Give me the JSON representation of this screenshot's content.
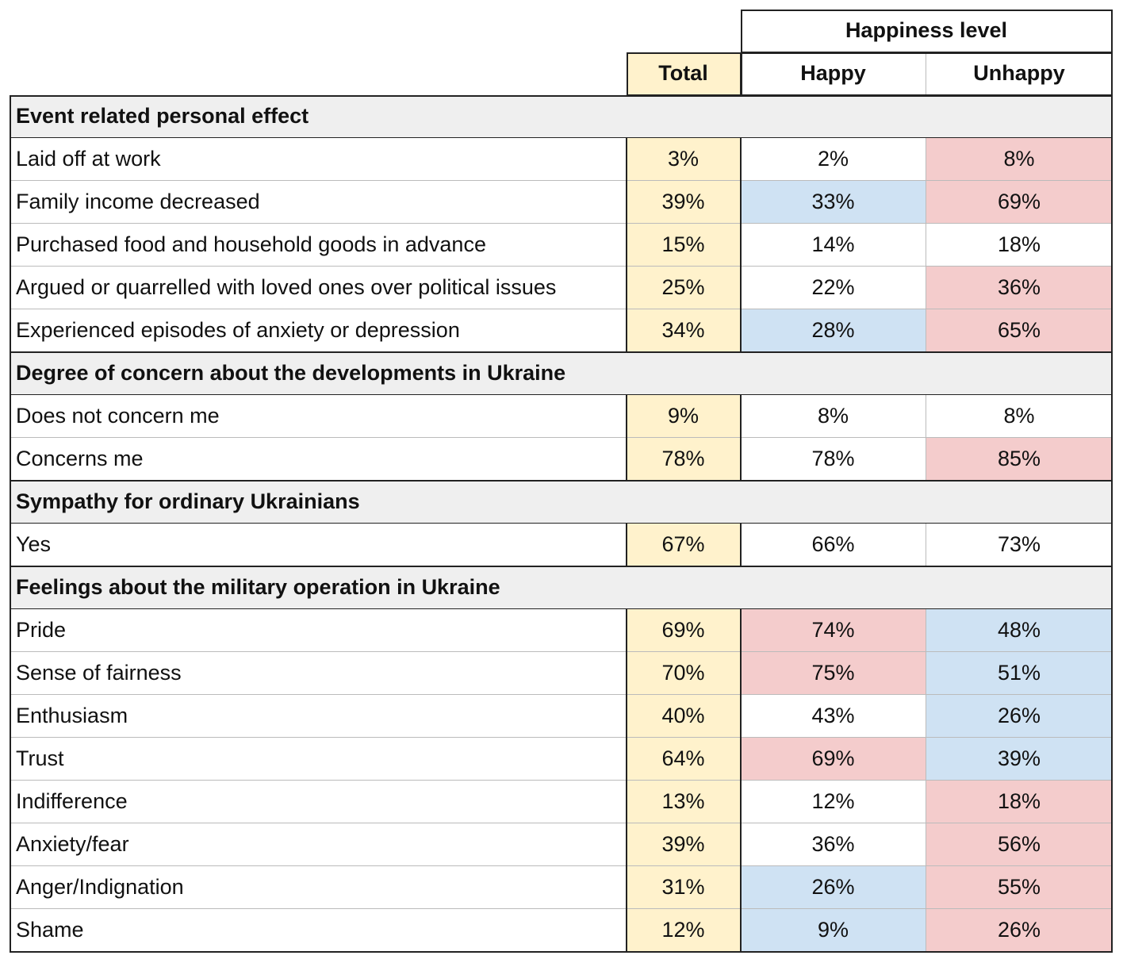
{
  "header": {
    "group": "Happiness level",
    "columns": [
      "Total",
      "Happy",
      "Unhappy"
    ]
  },
  "sections": [
    {
      "title": "Event related personal effect",
      "rows": [
        {
          "label": "Laid off at work",
          "values": [
            "3%",
            "2%",
            "8%"
          ],
          "fills": [
            "#fff2cc",
            null,
            "#f4cccc"
          ]
        },
        {
          "label": "Family income decreased",
          "values": [
            "39%",
            "33%",
            "69%"
          ],
          "fills": [
            "#fff2cc",
            "#cfe2f3",
            "#f4cccc"
          ]
        },
        {
          "label": "Purchased food and household goods in advance",
          "values": [
            "15%",
            "14%",
            "18%"
          ],
          "fills": [
            "#fff2cc",
            null,
            null
          ]
        },
        {
          "label": "Argued or quarrelled with loved ones over political issues",
          "values": [
            "25%",
            "22%",
            "36%"
          ],
          "fills": [
            "#fff2cc",
            null,
            "#f4cccc"
          ]
        },
        {
          "label": "Experienced episodes of anxiety or depression",
          "values": [
            "34%",
            "28%",
            "65%"
          ],
          "fills": [
            "#fff2cc",
            "#cfe2f3",
            "#f4cccc"
          ]
        }
      ]
    },
    {
      "title": "Degree of concern about the developments in Ukraine",
      "rows": [
        {
          "label": "Does not concern me",
          "values": [
            "9%",
            "8%",
            "8%"
          ],
          "fills": [
            "#fff2cc",
            null,
            null
          ]
        },
        {
          "label": "Concerns me",
          "values": [
            "78%",
            "78%",
            "85%"
          ],
          "fills": [
            "#fff2cc",
            null,
            "#f4cccc"
          ]
        }
      ]
    },
    {
      "title": "Sympathy for ordinary Ukrainians",
      "rows": [
        {
          "label": "Yes",
          "values": [
            "67%",
            "66%",
            "73%"
          ],
          "fills": [
            "#fff2cc",
            null,
            null
          ]
        }
      ]
    },
    {
      "title": "Feelings about the military operation in Ukraine",
      "rows": [
        {
          "label": "Pride",
          "values": [
            "69%",
            "74%",
            "48%"
          ],
          "fills": [
            "#fff2cc",
            "#f4cccc",
            "#cfe2f3"
          ]
        },
        {
          "label": "Sense of fairness",
          "values": [
            "70%",
            "75%",
            "51%"
          ],
          "fills": [
            "#fff2cc",
            "#f4cccc",
            "#cfe2f3"
          ]
        },
        {
          "label": "Enthusiasm",
          "values": [
            "40%",
            "43%",
            "26%"
          ],
          "fills": [
            "#fff2cc",
            null,
            "#cfe2f3"
          ]
        },
        {
          "label": "Trust",
          "values": [
            "64%",
            "69%",
            "39%"
          ],
          "fills": [
            "#fff2cc",
            "#f4cccc",
            "#cfe2f3"
          ]
        },
        {
          "label": "Indifference",
          "values": [
            "13%",
            "12%",
            "18%"
          ],
          "fills": [
            "#fff2cc",
            null,
            "#f4cccc"
          ]
        },
        {
          "label": "Anxiety/fear",
          "values": [
            "39%",
            "36%",
            "56%"
          ],
          "fills": [
            "#fff2cc",
            null,
            "#f4cccc"
          ]
        },
        {
          "label": "Anger/Indignation",
          "values": [
            "31%",
            "26%",
            "55%"
          ],
          "fills": [
            "#fff2cc",
            "#cfe2f3",
            "#f4cccc"
          ]
        },
        {
          "label": "Shame",
          "values": [
            "12%",
            "9%",
            "26%"
          ],
          "fills": [
            "#fff2cc",
            "#cfe2f3",
            "#f4cccc"
          ]
        }
      ]
    }
  ]
}
